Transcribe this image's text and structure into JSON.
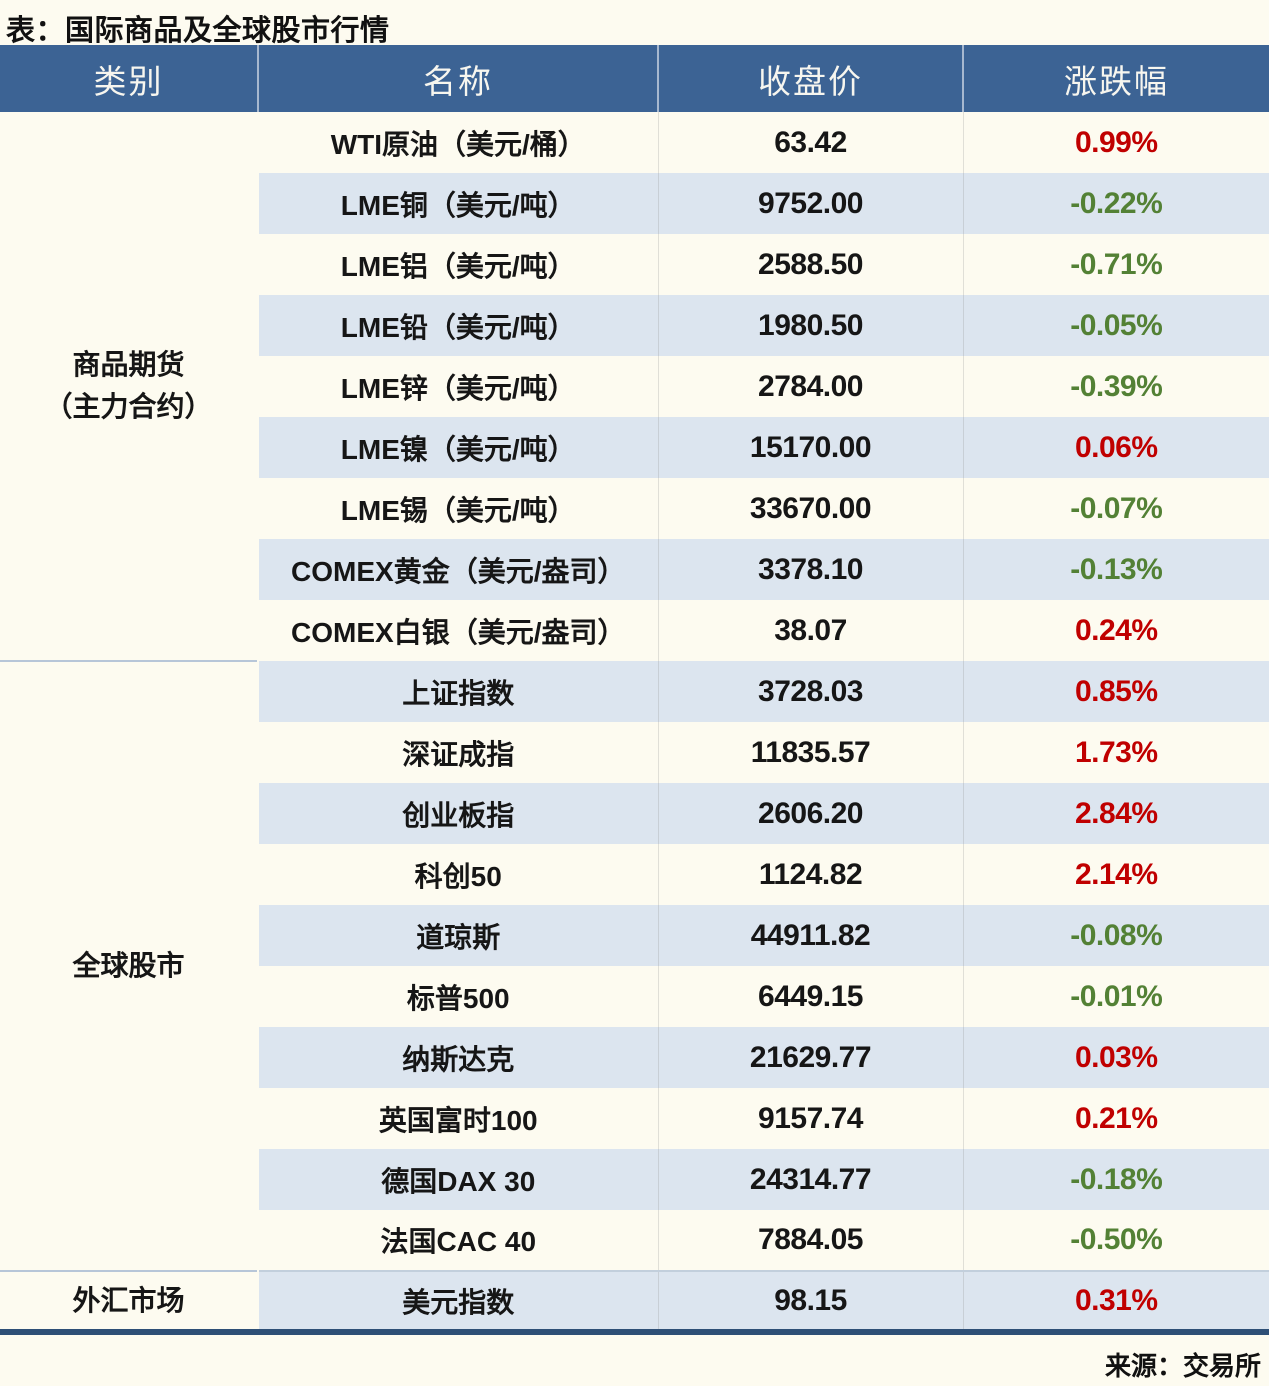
{
  "title": "表：国际商品及全球股市行情",
  "source": "来源：交易所",
  "colors": {
    "up": "#c00000",
    "down": "#538135",
    "header_bg": "#3c6394",
    "header_text": "#f7f6ef",
    "row_alt": "#dce5ef",
    "page_bg": "#fdfbf0",
    "bottom_border": "#2e4f76"
  },
  "chart_data": {
    "type": "table",
    "title": "表：国际商品及全球股市行情",
    "columns": [
      "类别",
      "名称",
      "收盘价",
      "涨跌幅"
    ],
    "source": "来源：交易所",
    "sections": [
      {
        "category": "商品期货（主力合约）",
        "category_lines": [
          "商品期货",
          "（主力合约）"
        ],
        "rows": [
          {
            "name": "WTI原油（美元/桶）",
            "close": "63.42",
            "change": "0.99%"
          },
          {
            "name": "LME铜（美元/吨）",
            "close": "9752.00",
            "change": "-0.22%"
          },
          {
            "name": "LME铝（美元/吨）",
            "close": "2588.50",
            "change": "-0.71%"
          },
          {
            "name": "LME铅（美元/吨）",
            "close": "1980.50",
            "change": "-0.05%"
          },
          {
            "name": "LME锌（美元/吨）",
            "close": "2784.00",
            "change": "-0.39%"
          },
          {
            "name": "LME镍（美元/吨）",
            "close": "15170.00",
            "change": "0.06%"
          },
          {
            "name": "LME锡（美元/吨）",
            "close": "33670.00",
            "change": "-0.07%"
          },
          {
            "name": "COMEX黄金（美元/盎司）",
            "close": "3378.10",
            "change": "-0.13%"
          },
          {
            "name": "COMEX白银（美元/盎司）",
            "close": "38.07",
            "change": "0.24%"
          }
        ]
      },
      {
        "category": "全球股市",
        "category_lines": [
          "全球股市"
        ],
        "rows": [
          {
            "name": "上证指数",
            "close": "3728.03",
            "change": "0.85%"
          },
          {
            "name": "深证成指",
            "close": "11835.57",
            "change": "1.73%"
          },
          {
            "name": "创业板指",
            "close": "2606.20",
            "change": "2.84%"
          },
          {
            "name": "科创50",
            "close": "1124.82",
            "change": "2.14%"
          },
          {
            "name": "道琼斯",
            "close": "44911.82",
            "change": "-0.08%"
          },
          {
            "name": "标普500",
            "close": "6449.15",
            "change": "-0.01%"
          },
          {
            "name": "纳斯达克",
            "close": "21629.77",
            "change": "0.03%"
          },
          {
            "name": "英国富时100",
            "close": "9157.74",
            "change": "0.21%"
          },
          {
            "name": "德国DAX 30",
            "close": "24314.77",
            "change": "-0.18%"
          },
          {
            "name": "法国CAC 40",
            "close": "7884.05",
            "change": "-0.50%"
          }
        ]
      },
      {
        "category": "外汇市场",
        "category_lines": [
          "外汇市场"
        ],
        "rows": [
          {
            "name": "美元指数",
            "close": "98.15",
            "change": "0.31%"
          }
        ]
      }
    ]
  }
}
